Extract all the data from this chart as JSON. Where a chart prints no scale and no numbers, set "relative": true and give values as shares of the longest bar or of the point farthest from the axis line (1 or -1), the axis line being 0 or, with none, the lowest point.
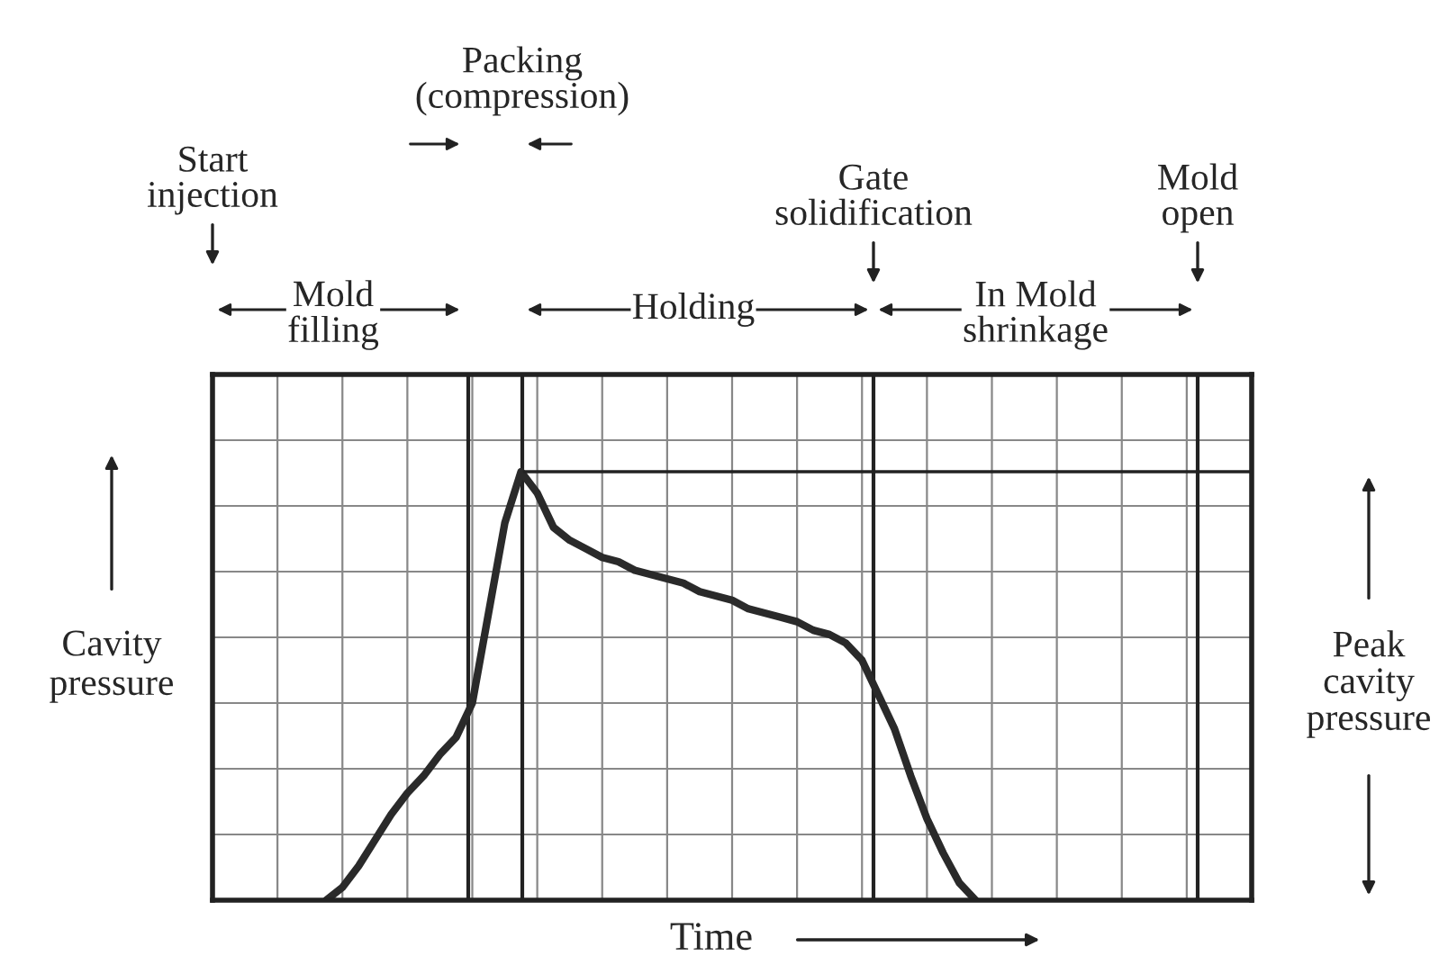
{
  "chart_data": {
    "type": "line",
    "relative": true,
    "xlabel": "Time",
    "ylabel": "Cavity pressure",
    "categories": [
      null,
      null,
      null,
      null,
      null,
      null,
      null,
      null,
      null,
      null,
      null,
      null,
      null,
      null,
      null,
      null,
      null,
      null,
      null,
      null,
      null,
      null,
      null,
      null,
      null,
      null,
      null,
      null,
      null,
      null,
      null,
      null,
      null,
      null,
      null,
      null,
      null,
      null,
      null,
      null,
      null,
      null,
      null,
      null,
      null,
      null,
      null,
      null,
      null,
      null,
      null,
      null,
      null,
      null,
      null,
      null,
      null,
      null,
      null,
      null,
      null,
      null,
      null,
      null,
      null
    ],
    "series": [
      {
        "color": "#2a2a2a",
        "values": [
          null,
          null,
          null,
          null,
          null,
          null,
          null,
          0,
          0.03,
          0.08,
          0.14,
          0.2,
          0.25,
          0.29,
          0.34,
          0.38,
          0.46,
          0.67,
          0.88,
          1.0,
          0.95,
          0.87,
          0.84,
          0.82,
          0.8,
          0.79,
          0.77,
          0.76,
          0.75,
          0.74,
          0.72,
          0.71,
          0.7,
          0.68,
          0.67,
          0.66,
          0.65,
          0.63,
          0.62,
          0.6,
          0.56,
          0.48,
          0.4,
          0.29,
          0.19,
          0.11,
          0.04,
          0,
          null,
          null,
          null,
          null,
          null,
          null,
          null,
          null,
          null,
          null,
          null,
          null,
          null,
          null,
          null,
          null,
          null
        ]
      }
    ],
    "ref_lines": [
      {
        "axis": "y",
        "value": 1,
        "label": "Peak cavity pressure"
      }
    ],
    "annotations": [
      "Start injection",
      "Mold filling",
      "Packing (compression)",
      "Holding",
      "Gate solidification",
      "In Mold shrinkage",
      "Mold open"
    ],
    "grid": true,
    "marker": "none",
    "line_style": "solid",
    "legend": false
  }
}
